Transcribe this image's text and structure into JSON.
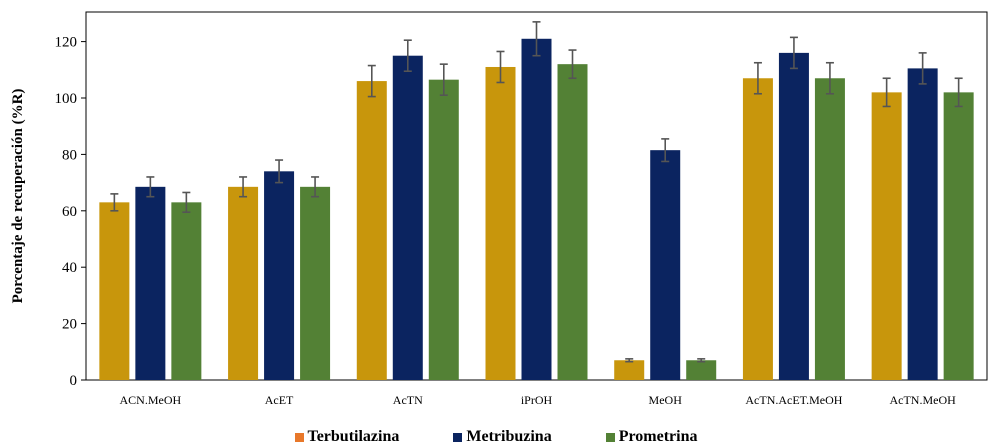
{
  "chart_data": {
    "type": "bar",
    "title": "",
    "xlabel": "",
    "ylabel": "Porcentaje de recuperación (%R)",
    "ylim": [
      0,
      130
    ],
    "yticks": [
      0,
      20,
      40,
      60,
      80,
      100,
      120
    ],
    "grid": false,
    "legend_position": "bottom",
    "categories": [
      "ACN.MeOH",
      "AcET",
      "AcTN",
      "iPrOH",
      "MeOH",
      "AcTN.AcET.MeOH",
      "AcTN.MeOH"
    ],
    "series": [
      {
        "name": "Terbutilazina",
        "color": "#c8960c",
        "legend_color": "#e8782a",
        "values": [
          63,
          68.5,
          106,
          111,
          7,
          107,
          102
        ],
        "errors": [
          3,
          3.5,
          5.5,
          5.5,
          0.5,
          5.5,
          5
        ]
      },
      {
        "name": "Metribuzina",
        "color": "#0b2460",
        "values": [
          68.5,
          74,
          115,
          121,
          81.5,
          116,
          110.5
        ],
        "errors": [
          3.5,
          4,
          5.5,
          6,
          4,
          5.5,
          5.5
        ]
      },
      {
        "name": "Prometrina",
        "color": "#538135",
        "values": [
          63,
          68.5,
          106.5,
          112,
          7,
          107,
          102
        ],
        "errors": [
          3.5,
          3.5,
          5.5,
          5,
          0.5,
          5.5,
          5
        ]
      }
    ]
  }
}
